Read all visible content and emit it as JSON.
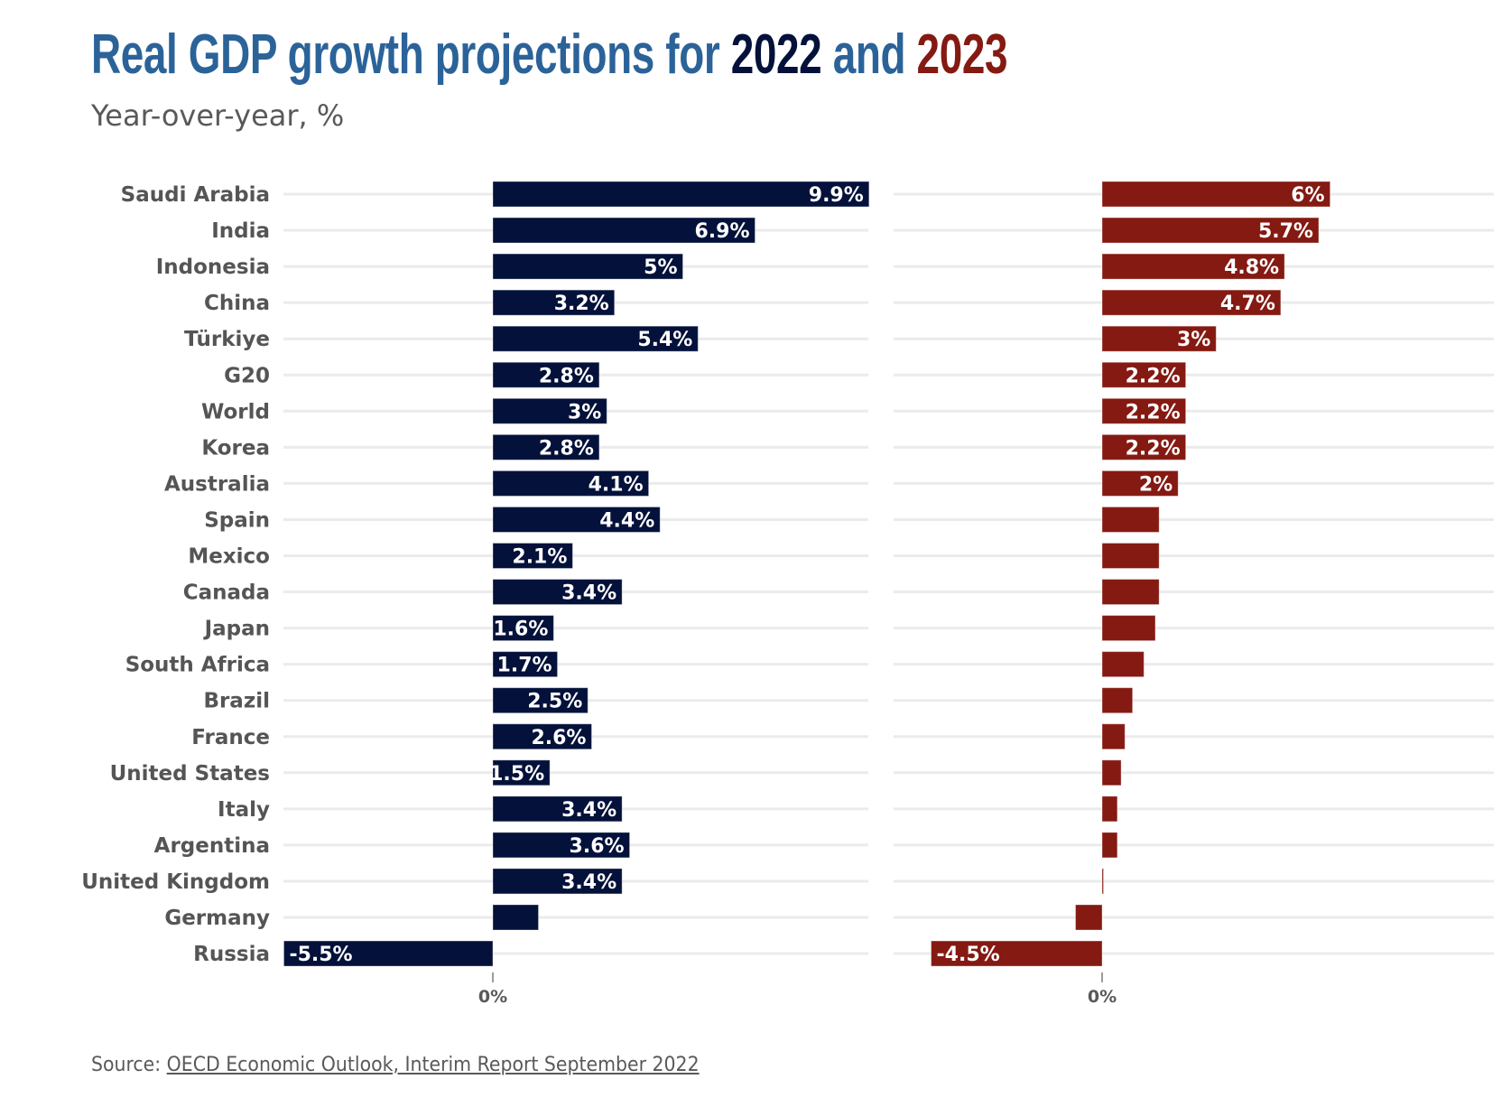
{
  "header": {
    "title_part1": "Real GDP growth projections for ",
    "title_year1": "2022",
    "title_part2": " and ",
    "title_year2": "2023",
    "subtitle": "Year-over-year, %"
  },
  "footer": {
    "source_prefix": "Source: ",
    "source_link": "OECD Economic Outlook, Interim Report September 2022"
  },
  "colors": {
    "title": "#2B6399",
    "series_2022": "#04113A",
    "series_2023": "#841A12",
    "gridline": "#EBEBEB",
    "label": "#555555"
  },
  "chart_data": {
    "type": "bar",
    "orientation": "horizontal",
    "title": "Real GDP growth projections for 2022 and 2023",
    "subtitle": "Year-over-year, %",
    "xlabel": "",
    "ylabel": "",
    "categories": [
      "Saudi Arabia",
      "India",
      "Indonesia",
      "China",
      "Türkiye",
      "G20",
      "World",
      "Korea",
      "Australia",
      "Spain",
      "Mexico",
      "Canada",
      "Japan",
      "South Africa",
      "Brazil",
      "France",
      "United States",
      "Italy",
      "Argentina",
      "United Kingdom",
      "Germany",
      "Russia"
    ],
    "series": [
      {
        "name": "2022",
        "color": "#04113A",
        "values": [
          9.9,
          6.9,
          5,
          3.2,
          5.4,
          2.8,
          3,
          2.8,
          4.1,
          4.4,
          2.1,
          3.4,
          1.6,
          1.7,
          2.5,
          2.6,
          1.5,
          3.4,
          3.6,
          3.4,
          1.2,
          -5.5
        ],
        "labels": [
          "9.9%",
          "6.9%",
          "5%",
          "3.2%",
          "5.4%",
          "2.8%",
          "3%",
          "2.8%",
          "4.1%",
          "4.4%",
          "2.1%",
          "3.4%",
          "1.6%",
          "1.7%",
          "2.5%",
          "2.6%",
          "1.5%",
          "3.4%",
          "3.6%",
          "3.4%",
          "",
          "-5.5%"
        ]
      },
      {
        "name": "2023",
        "color": "#841A12",
        "values": [
          6,
          5.7,
          4.8,
          4.7,
          3,
          2.2,
          2.2,
          2.2,
          2,
          1.5,
          1.5,
          1.5,
          1.4,
          1.1,
          0.8,
          0.6,
          0.5,
          0.4,
          0.4,
          0.0,
          -0.7,
          -4.5
        ],
        "labels": [
          "6%",
          "5.7%",
          "4.8%",
          "4.7%",
          "3%",
          "2.2%",
          "2.2%",
          "2.2%",
          "2%",
          "",
          "",
          "",
          "",
          "",
          "",
          "",
          "",
          "",
          "",
          "",
          "",
          "-4.5%"
        ]
      }
    ],
    "xlim": [
      -5.5,
      10
    ],
    "x_ticks": [
      "0%"
    ],
    "grid": true,
    "legend": "none (years colored in title)",
    "panels": [
      "2022",
      "2023"
    ]
  }
}
